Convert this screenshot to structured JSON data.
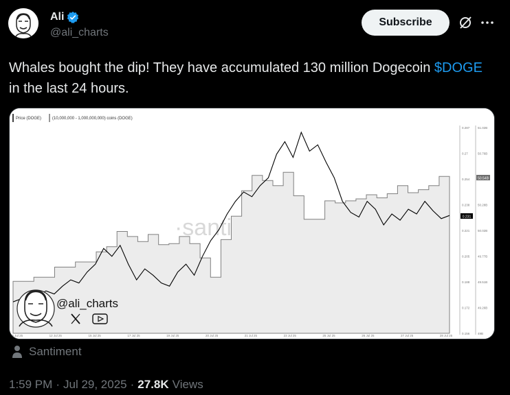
{
  "author": {
    "name": "Ali",
    "handle": "@ali_charts",
    "verified": true
  },
  "actions": {
    "subscribe_label": "Subscribe",
    "grok_icon": "grok-icon",
    "more_icon": "more-dots-icon"
  },
  "tweet": {
    "text_before": "Whales bought the dip! They have accumulated 130 million Dogecoin ",
    "cashtag": "$DOGE",
    "text_after": " in the last 24 hours."
  },
  "media": {
    "legend_price": "Price (DOGE)",
    "legend_holdings": "(10,000,000 - 1,000,000,000) coins (DOGE)",
    "watermark": "·santiment·",
    "overlay_handle": "@ali_charts",
    "price_badge": "0.231",
    "holdings_badge": "50.54B"
  },
  "chart_data": {
    "type": "line",
    "x_labels": [
      "16 Jul 25",
      "12 Jul 25",
      "15 Jul 25",
      "17 Jul 25",
      "19 Jul 25",
      "20 Jul 25",
      "21 Jul 25",
      "23 Jul 25",
      "25 Jul 25",
      "26 Jul 25",
      "27 Jul 25",
      "28 Jul 25"
    ],
    "price_axis_labels": [
      "0.287",
      "0.27",
      "0.254",
      "0.238",
      "0.221",
      "0.205",
      "0.188",
      "0.172",
      "0.156"
    ],
    "holdings_axis_labels": [
      "51.02B",
      "50.76B",
      "50.54B",
      "50.28B",
      "50.02B",
      "49.77B",
      "49.51B",
      "49.26B",
      "49B"
    ],
    "series": [
      {
        "name": "Price (DOGE)",
        "color": "#000000",
        "values": [
          0.176,
          0.178,
          0.175,
          0.18,
          0.183,
          0.181,
          0.186,
          0.19,
          0.188,
          0.195,
          0.2,
          0.21,
          0.205,
          0.212,
          0.2,
          0.19,
          0.197,
          0.193,
          0.188,
          0.186,
          0.195,
          0.2,
          0.193,
          0.205,
          0.215,
          0.222,
          0.232,
          0.24,
          0.246,
          0.243,
          0.25,
          0.255,
          0.27,
          0.278,
          0.268,
          0.284,
          0.272,
          0.276,
          0.265,
          0.255,
          0.24,
          0.233,
          0.23,
          0.24,
          0.235,
          0.225,
          0.232,
          0.228,
          0.235,
          0.232,
          0.24,
          0.234,
          0.229,
          0.231
        ]
      },
      {
        "name": "(10,000,000 - 1,000,000,000) coins (DOGE)",
        "color": "#7f7f7f",
        "values": [
          49.51,
          49.51,
          49.55,
          49.55,
          49.65,
          49.65,
          49.7,
          49.7,
          49.8,
          49.85,
          50.0,
          49.95,
          49.9,
          49.97,
          49.87,
          49.88,
          49.95,
          49.88,
          49.74,
          49.55,
          49.92,
          50.15,
          50.4,
          50.55,
          50.5,
          50.45,
          50.58,
          50.35,
          50.12,
          50.12,
          50.3,
          50.28,
          50.3,
          50.32,
          50.36,
          50.33,
          50.37,
          50.45,
          50.38,
          50.41,
          50.45,
          50.54
        ]
      }
    ],
    "grid": false
  },
  "source": {
    "label": "Santiment",
    "icon": "person-icon"
  },
  "meta": {
    "time": "1:59 PM",
    "separator": "·",
    "date": "Jul 29, 2025",
    "views_count": "27.8K",
    "views_label": "Views"
  }
}
